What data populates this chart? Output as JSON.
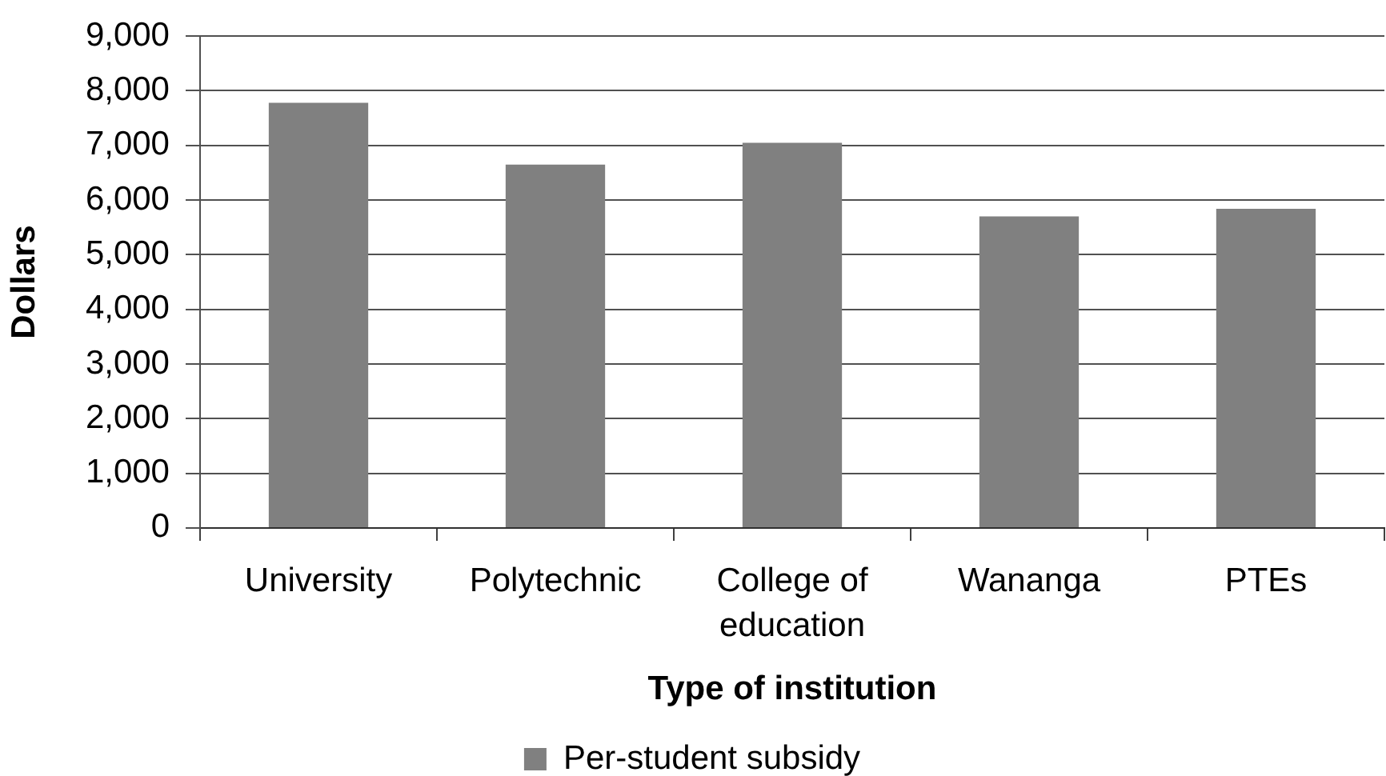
{
  "chart_data": {
    "type": "bar",
    "xlabel": "Type of institution",
    "ylabel": "Dollars",
    "categories": [
      "University",
      "Polytechnic",
      "College of education",
      "Wananga",
      "PTEs"
    ],
    "series": [
      {
        "name": "Per-student subsidy",
        "color": "#808080",
        "values": [
          7780,
          6650,
          7050,
          5700,
          5840
        ]
      }
    ],
    "ylim": [
      0,
      9000
    ],
    "yticks": [
      {
        "value": 0,
        "label": "0"
      },
      {
        "value": 1000,
        "label": "1,000"
      },
      {
        "value": 2000,
        "label": "2,000"
      },
      {
        "value": 3000,
        "label": "3,000"
      },
      {
        "value": 4000,
        "label": "4,000"
      },
      {
        "value": 5000,
        "label": "5,000"
      },
      {
        "value": 6000,
        "label": "6,000"
      },
      {
        "value": 7000,
        "label": "7,000"
      },
      {
        "value": 8000,
        "label": "8,000"
      },
      {
        "value": 9000,
        "label": "9,000"
      }
    ],
    "grid": "y",
    "legend": "bottom"
  }
}
